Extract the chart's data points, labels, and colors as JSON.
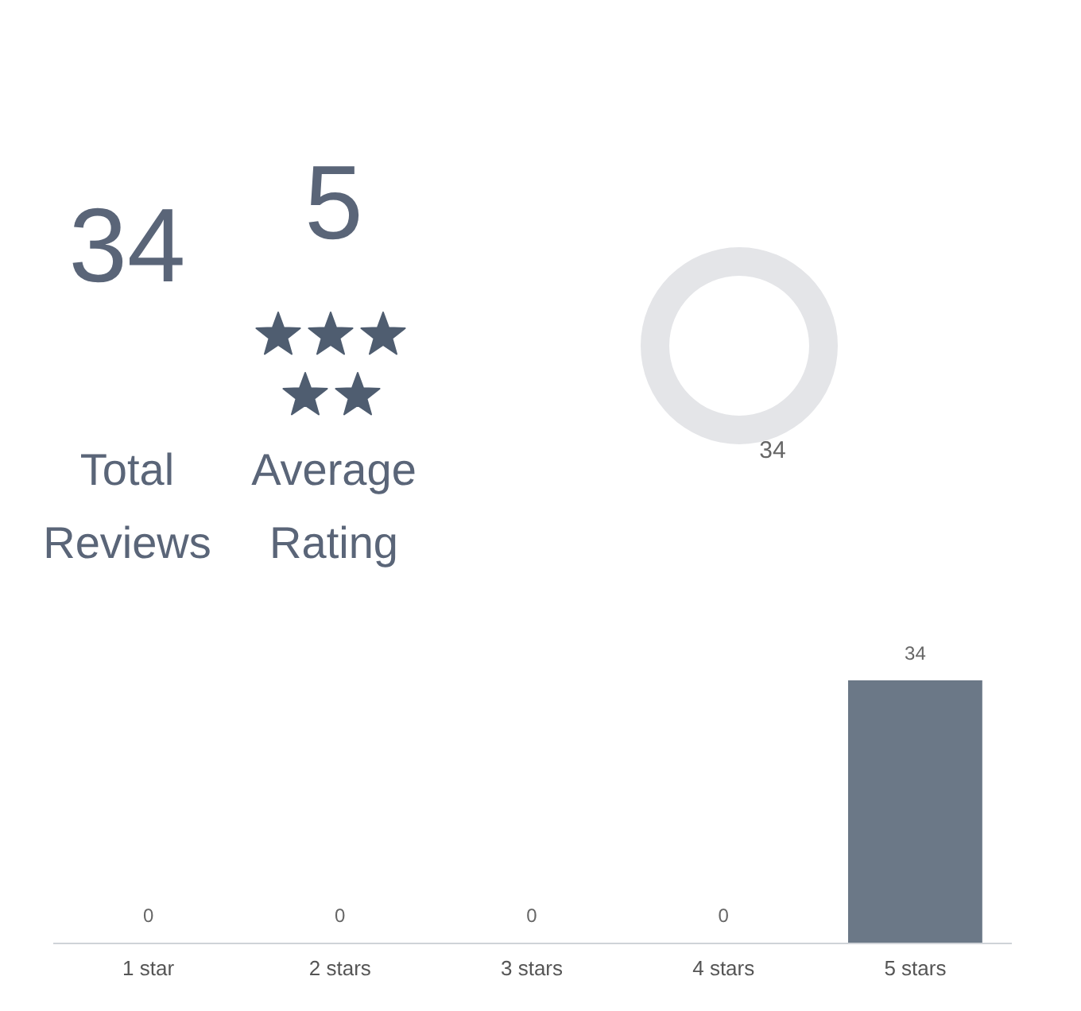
{
  "chart_data": [
    {
      "type": "other",
      "annotations": [
        "34",
        "Total Reviews",
        "5",
        "Average Rating"
      ]
    },
    {
      "type": "donut",
      "categories": [
        null
      ],
      "values": [
        34
      ],
      "colors": [
        "#e4e5e8"
      ],
      "data_labels": true
    },
    {
      "type": "bar",
      "categories": [
        "1 star",
        "2 stars",
        "3 stars",
        "4 stars",
        "5 stars"
      ],
      "values": [
        0,
        0,
        0,
        0,
        34
      ],
      "color": "#6b7887",
      "data_labels": true,
      "tick_labels": "x"
    }
  ]
}
